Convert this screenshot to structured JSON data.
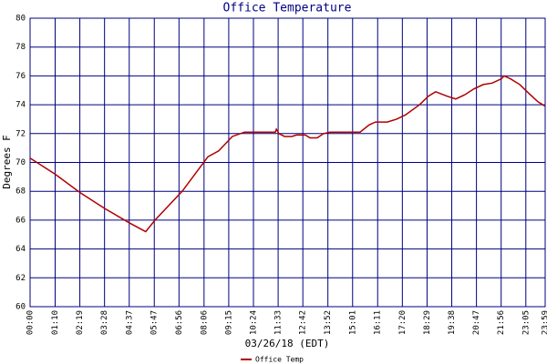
{
  "chart_data": {
    "type": "line",
    "title": "Office Temperature",
    "x_label": "03/26/18 (EDT)",
    "y_label": "Degrees F",
    "x": [
      0,
      69,
      140,
      209,
      278,
      323,
      349,
      425,
      497,
      527,
      565,
      599,
      685,
      688,
      695,
      711,
      731,
      744,
      769,
      782,
      802,
      820,
      838,
      922,
      947,
      965,
      998,
      1024,
      1049,
      1088,
      1113,
      1133,
      1164,
      1189,
      1215,
      1240,
      1266,
      1291,
      1317,
      1324,
      1342,
      1368,
      1393,
      1419,
      1439
    ],
    "series": [
      {
        "name": "Office Temp",
        "color": "#b00000",
        "values": [
          70.3,
          69.2,
          67.9,
          66.8,
          65.8,
          65.2,
          66.0,
          68.0,
          70.4,
          70.8,
          71.8,
          72.1,
          72.1,
          72.3,
          72.0,
          71.8,
          71.8,
          71.9,
          71.9,
          71.7,
          71.7,
          72.0,
          72.1,
          72.1,
          72.6,
          72.8,
          72.8,
          73.0,
          73.3,
          74.0,
          74.6,
          74.9,
          74.6,
          74.4,
          74.7,
          75.1,
          75.4,
          75.5,
          75.8,
          76.0,
          75.8,
          75.4,
          74.8,
          74.2,
          73.9
        ]
      }
    ],
    "xlim": [
      0,
      1439
    ],
    "xticks": [
      {
        "value": 0,
        "label": "00:00"
      },
      {
        "value": 70,
        "label": "01:10"
      },
      {
        "value": 139,
        "label": "02:19"
      },
      {
        "value": 208,
        "label": "03:28"
      },
      {
        "value": 277,
        "label": "04:37"
      },
      {
        "value": 347,
        "label": "05:47"
      },
      {
        "value": 416,
        "label": "06:56"
      },
      {
        "value": 486,
        "label": "08:06"
      },
      {
        "value": 555,
        "label": "09:15"
      },
      {
        "value": 624,
        "label": "10:24"
      },
      {
        "value": 693,
        "label": "11:33"
      },
      {
        "value": 762,
        "label": "12:42"
      },
      {
        "value": 832,
        "label": "13:52"
      },
      {
        "value": 901,
        "label": "15:01"
      },
      {
        "value": 971,
        "label": "16:11"
      },
      {
        "value": 1040,
        "label": "17:20"
      },
      {
        "value": 1109,
        "label": "18:29"
      },
      {
        "value": 1178,
        "label": "19:38"
      },
      {
        "value": 1247,
        "label": "20:47"
      },
      {
        "value": 1316,
        "label": "21:56"
      },
      {
        "value": 1385,
        "label": "23:05"
      },
      {
        "value": 1439,
        "label": "23:59"
      }
    ],
    "ylim": [
      60,
      80
    ],
    "yticks": [
      60,
      62,
      64,
      66,
      68,
      70,
      72,
      74,
      76,
      78,
      80
    ],
    "grid": true
  }
}
